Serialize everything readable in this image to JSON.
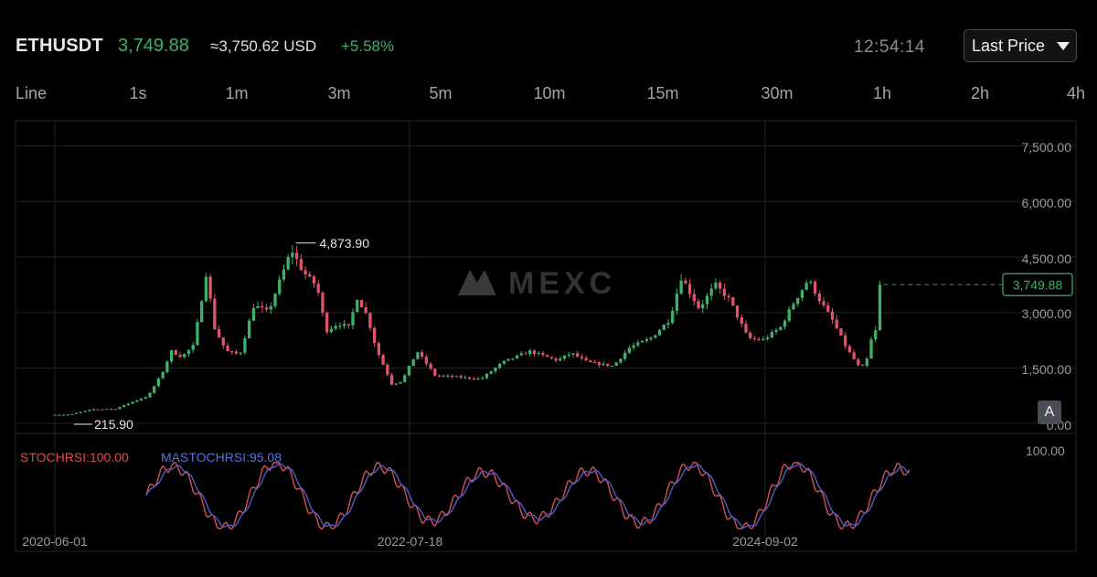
{
  "header": {
    "symbol": "ETHUSDT",
    "last_price": "3,749.88",
    "usd_equivalent": "≈3,750.62 USD",
    "change_pct": "+5.58%",
    "clock": "12:54:14",
    "price_mode": "Last Price"
  },
  "intervals": [
    "Line",
    "1s",
    "1m",
    "3m",
    "5m",
    "10m",
    "15m",
    "30m",
    "1h",
    "2h",
    "4h"
  ],
  "watermark": "MEXC",
  "adjust_button": "A",
  "colors": {
    "up": "#3fb06a",
    "down": "#e0546a",
    "stoch": "#d7504f",
    "ma_stoch": "#4a5fc9",
    "background": "#000000"
  },
  "chart_data": {
    "type": "candlestick",
    "symbol": "ETHUSDT",
    "y_axis_ticks": [
      "7,500.00",
      "6,000.00",
      "4,500.00",
      "3,000.00",
      "1,500.00",
      "0.00"
    ],
    "x_axis_ticks": [
      "2020-06-01",
      "2022-07-18",
      "2024-09-02"
    ],
    "ylim": [
      0,
      8000
    ],
    "x_range": [
      "2020-06-01",
      "2025-05-20"
    ],
    "annotations": {
      "max": {
        "label": "4,873.90",
        "value": 4873.9,
        "date": "2021-11-10"
      },
      "min": {
        "label": "215.90",
        "value": 215.9,
        "date": "2020-06-15"
      },
      "current": {
        "label": "3,749.88",
        "value": 3749.88
      }
    },
    "price_path": [
      [
        "2020-06-01",
        230
      ],
      [
        "2020-07-15",
        240
      ],
      [
        "2020-09-01",
        380
      ],
      [
        "2020-10-20",
        390
      ],
      [
        "2020-12-01",
        600
      ],
      [
        "2021-01-01",
        740
      ],
      [
        "2021-02-01",
        1380
      ],
      [
        "2021-02-20",
        1950
      ],
      [
        "2021-03-15",
        1800
      ],
      [
        "2021-04-10",
        2100
      ],
      [
        "2021-05-08",
        4100
      ],
      [
        "2021-05-25",
        2600
      ],
      [
        "2021-06-20",
        1950
      ],
      [
        "2021-07-20",
        1850
      ],
      [
        "2021-08-20",
        3200
      ],
      [
        "2021-09-20",
        3000
      ],
      [
        "2021-10-20",
        4000
      ],
      [
        "2021-11-10",
        4700
      ],
      [
        "2021-12-05",
        4100
      ],
      [
        "2022-01-05",
        3700
      ],
      [
        "2022-01-25",
        2500
      ],
      [
        "2022-02-20",
        2700
      ],
      [
        "2022-03-15",
        2600
      ],
      [
        "2022-04-03",
        3400
      ],
      [
        "2022-04-25",
        2900
      ],
      [
        "2022-05-15",
        2000
      ],
      [
        "2022-06-18",
        1050
      ],
      [
        "2022-07-10",
        1150
      ],
      [
        "2022-08-12",
        1950
      ],
      [
        "2022-09-20",
        1300
      ],
      [
        "2022-11-10",
        1250
      ],
      [
        "2022-12-30",
        1200
      ],
      [
        "2023-02-15",
        1650
      ],
      [
        "2023-04-15",
        1950
      ],
      [
        "2023-06-15",
        1700
      ],
      [
        "2023-07-15",
        1900
      ],
      [
        "2023-08-20",
        1650
      ],
      [
        "2023-10-15",
        1550
      ],
      [
        "2023-11-20",
        2050
      ],
      [
        "2024-01-05",
        2300
      ],
      [
        "2024-02-15",
        2800
      ],
      [
        "2024-03-12",
        3950
      ],
      [
        "2024-04-20",
        3100
      ],
      [
        "2024-05-25",
        3750
      ],
      [
        "2024-06-25",
        3350
      ],
      [
        "2024-08-05",
        2300
      ],
      [
        "2024-09-06",
        2250
      ],
      [
        "2024-10-15",
        2600
      ],
      [
        "2024-11-10",
        3200
      ],
      [
        "2024-12-15",
        3900
      ],
      [
        "2025-01-10",
        3300
      ],
      [
        "2025-02-05",
        2800
      ],
      [
        "2025-03-10",
        2000
      ],
      [
        "2025-04-09",
        1450
      ],
      [
        "2025-04-25",
        1800
      ],
      [
        "2025-05-05",
        2500
      ],
      [
        "2025-05-12",
        2500
      ],
      [
        "2025-05-20",
        3750
      ]
    ],
    "indicator": {
      "stoch_label": "STOCHRSI:100.00",
      "ma_label": "MASTOCHRSI:95.08",
      "axis_tick": "100.00",
      "range": [
        0,
        100
      ]
    }
  }
}
